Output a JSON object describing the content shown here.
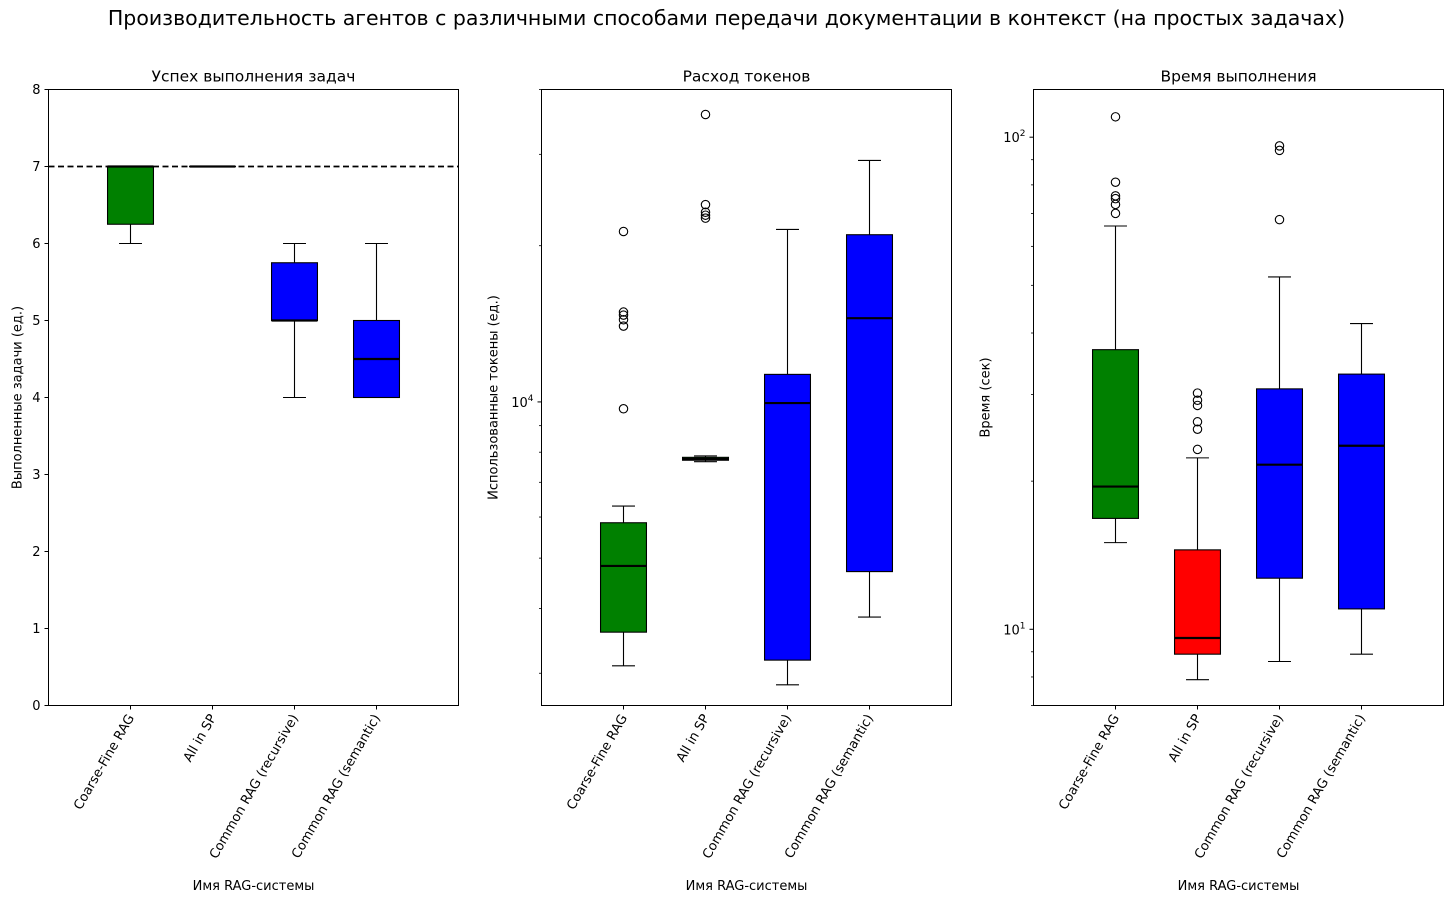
{
  "figure": {
    "suptitle": "Производительность агентов с различными способами передачи документации в контекст (на простых задачах)"
  },
  "chart_data": [
    {
      "type": "boxplot",
      "title": "Успех выполнения задач",
      "xlabel": "Имя RAG-системы",
      "ylabel": "Выполненные задачи (ед.)",
      "yscale": "linear",
      "ylim": [
        0,
        8
      ],
      "yticks": [
        0,
        1,
        2,
        3,
        4,
        5,
        6,
        7,
        8
      ],
      "categories": [
        "Coarse-Fine RAG",
        "All in SP",
        "Common RAG (recursive)",
        "Common RAG (semantic)"
      ],
      "reference_line": {
        "y": 7,
        "style": "dashed",
        "color": "#000000"
      },
      "boxes": [
        {
          "category": "Coarse-Fine RAG",
          "whislo": 6,
          "q1": 6.25,
          "med": 7,
          "q3": 7,
          "whishi": 7,
          "fliers": [],
          "color": "#008000"
        },
        {
          "category": "All in SP",
          "whislo": 7,
          "q1": 7,
          "med": 7,
          "q3": 7,
          "whishi": 7,
          "fliers": [],
          "color": "#008000"
        },
        {
          "category": "Common RAG (recursive)",
          "whislo": 4,
          "q1": 5,
          "med": 5,
          "q3": 5.75,
          "whishi": 6,
          "fliers": [],
          "color": "#0000ff"
        },
        {
          "category": "Common RAG (semantic)",
          "whislo": 4,
          "q1": 4,
          "med": 4.5,
          "q3": 5,
          "whishi": 6,
          "fliers": [],
          "color": "#0000ff"
        }
      ]
    },
    {
      "type": "boxplot",
      "title": "Расход токенов",
      "xlabel": "Имя RAG-системы",
      "ylabel": "Использованные токены (ед.)",
      "yscale": "log",
      "ylim": [
        2600,
        40000
      ],
      "yticks": [
        10000
      ],
      "ytick_labels": [
        "10^4"
      ],
      "categories": [
        "Coarse-Fine RAG",
        "All in SP",
        "Common RAG (recursive)",
        "Common RAG (semantic)"
      ],
      "boxes": [
        {
          "category": "Coarse-Fine RAG",
          "whislo": 3100,
          "q1": 3600,
          "med": 4830,
          "q3": 5850,
          "whishi": 6300,
          "fliers": [
            9700,
            14000,
            14400,
            14700,
            14900,
            21300
          ],
          "color": "#008000"
        },
        {
          "category": "All in SP",
          "whislo": 7670,
          "q1": 7720,
          "med": 7760,
          "q3": 7820,
          "whishi": 7870,
          "fliers": [
            22600,
            22900,
            23200,
            24000,
            35800
          ],
          "color": "#008000"
        },
        {
          "category": "Common RAG (recursive)",
          "whislo": 2850,
          "q1": 3180,
          "med": 9950,
          "q3": 11300,
          "whishi": 21500,
          "fliers": [],
          "color": "#0000ff"
        },
        {
          "category": "Common RAG (semantic)",
          "whislo": 3850,
          "q1": 4710,
          "med": 14500,
          "q3": 21000,
          "whishi": 29200,
          "fliers": [],
          "color": "#0000ff"
        }
      ]
    },
    {
      "type": "boxplot",
      "title": "Время выполнения",
      "xlabel": "Имя RAG-системы",
      "ylabel": "Время (сек)",
      "yscale": "log",
      "ylim": [
        7,
        125
      ],
      "yticks": [
        10,
        100
      ],
      "ytick_labels": [
        "10^1",
        "10^2"
      ],
      "categories": [
        "Coarse-Fine RAG",
        "All in SP",
        "Common RAG (recursive)",
        "Common RAG (semantic)"
      ],
      "boxes": [
        {
          "category": "Coarse-Fine RAG",
          "whislo": 15,
          "q1": 16.8,
          "med": 19.5,
          "q3": 37,
          "whishi": 66,
          "fliers": [
            70,
            73,
            75,
            76,
            81,
            110
          ],
          "color": "#008000"
        },
        {
          "category": "All in SP",
          "whislo": 7.9,
          "q1": 8.9,
          "med": 9.6,
          "q3": 14.5,
          "whishi": 22.3,
          "fliers": [
            23.2,
            25.5,
            26.4,
            28.5,
            29.2,
            30.2
          ],
          "color": "#ff0000"
        },
        {
          "category": "Common RAG (recursive)",
          "whislo": 8.6,
          "q1": 12.7,
          "med": 21.6,
          "q3": 30.8,
          "whishi": 52,
          "fliers": [
            68,
            94,
            96
          ],
          "color": "#0000ff"
        },
        {
          "category": "Common RAG (semantic)",
          "whislo": 8.9,
          "q1": 11,
          "med": 23.6,
          "q3": 33,
          "whishi": 41.8,
          "fliers": [],
          "color": "#0000ff"
        }
      ]
    }
  ]
}
